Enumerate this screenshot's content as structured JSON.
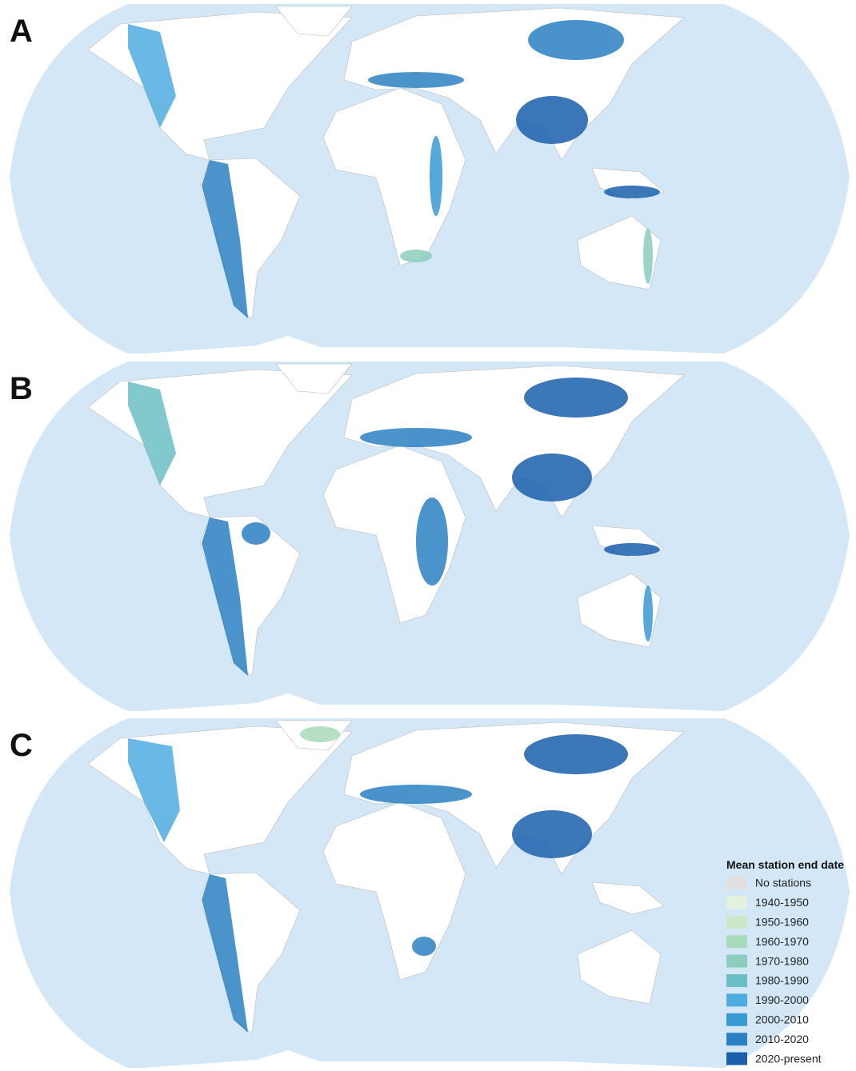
{
  "panels": [
    {
      "label": "A"
    },
    {
      "label": "B"
    },
    {
      "label": "C"
    }
  ],
  "legend": {
    "title": "Mean station end date",
    "items": [
      {
        "label": "No stations",
        "color": "#e0e0e0"
      },
      {
        "label": "1940-1950",
        "color": "#e3f2dc"
      },
      {
        "label": "1950-1960",
        "color": "#cbe8c8"
      },
      {
        "label": "1960-1970",
        "color": "#a8dabc"
      },
      {
        "label": "1970-1980",
        "color": "#8bcebd"
      },
      {
        "label": "1980-1990",
        "color": "#6bbfc4"
      },
      {
        "label": "1990-2000",
        "color": "#4face0"
      },
      {
        "label": "2000-2010",
        "color": "#3a9ad2"
      },
      {
        "label": "2010-2020",
        "color": "#2a80c2"
      },
      {
        "label": "2020-present",
        "color": "#1a60ac"
      }
    ]
  }
}
